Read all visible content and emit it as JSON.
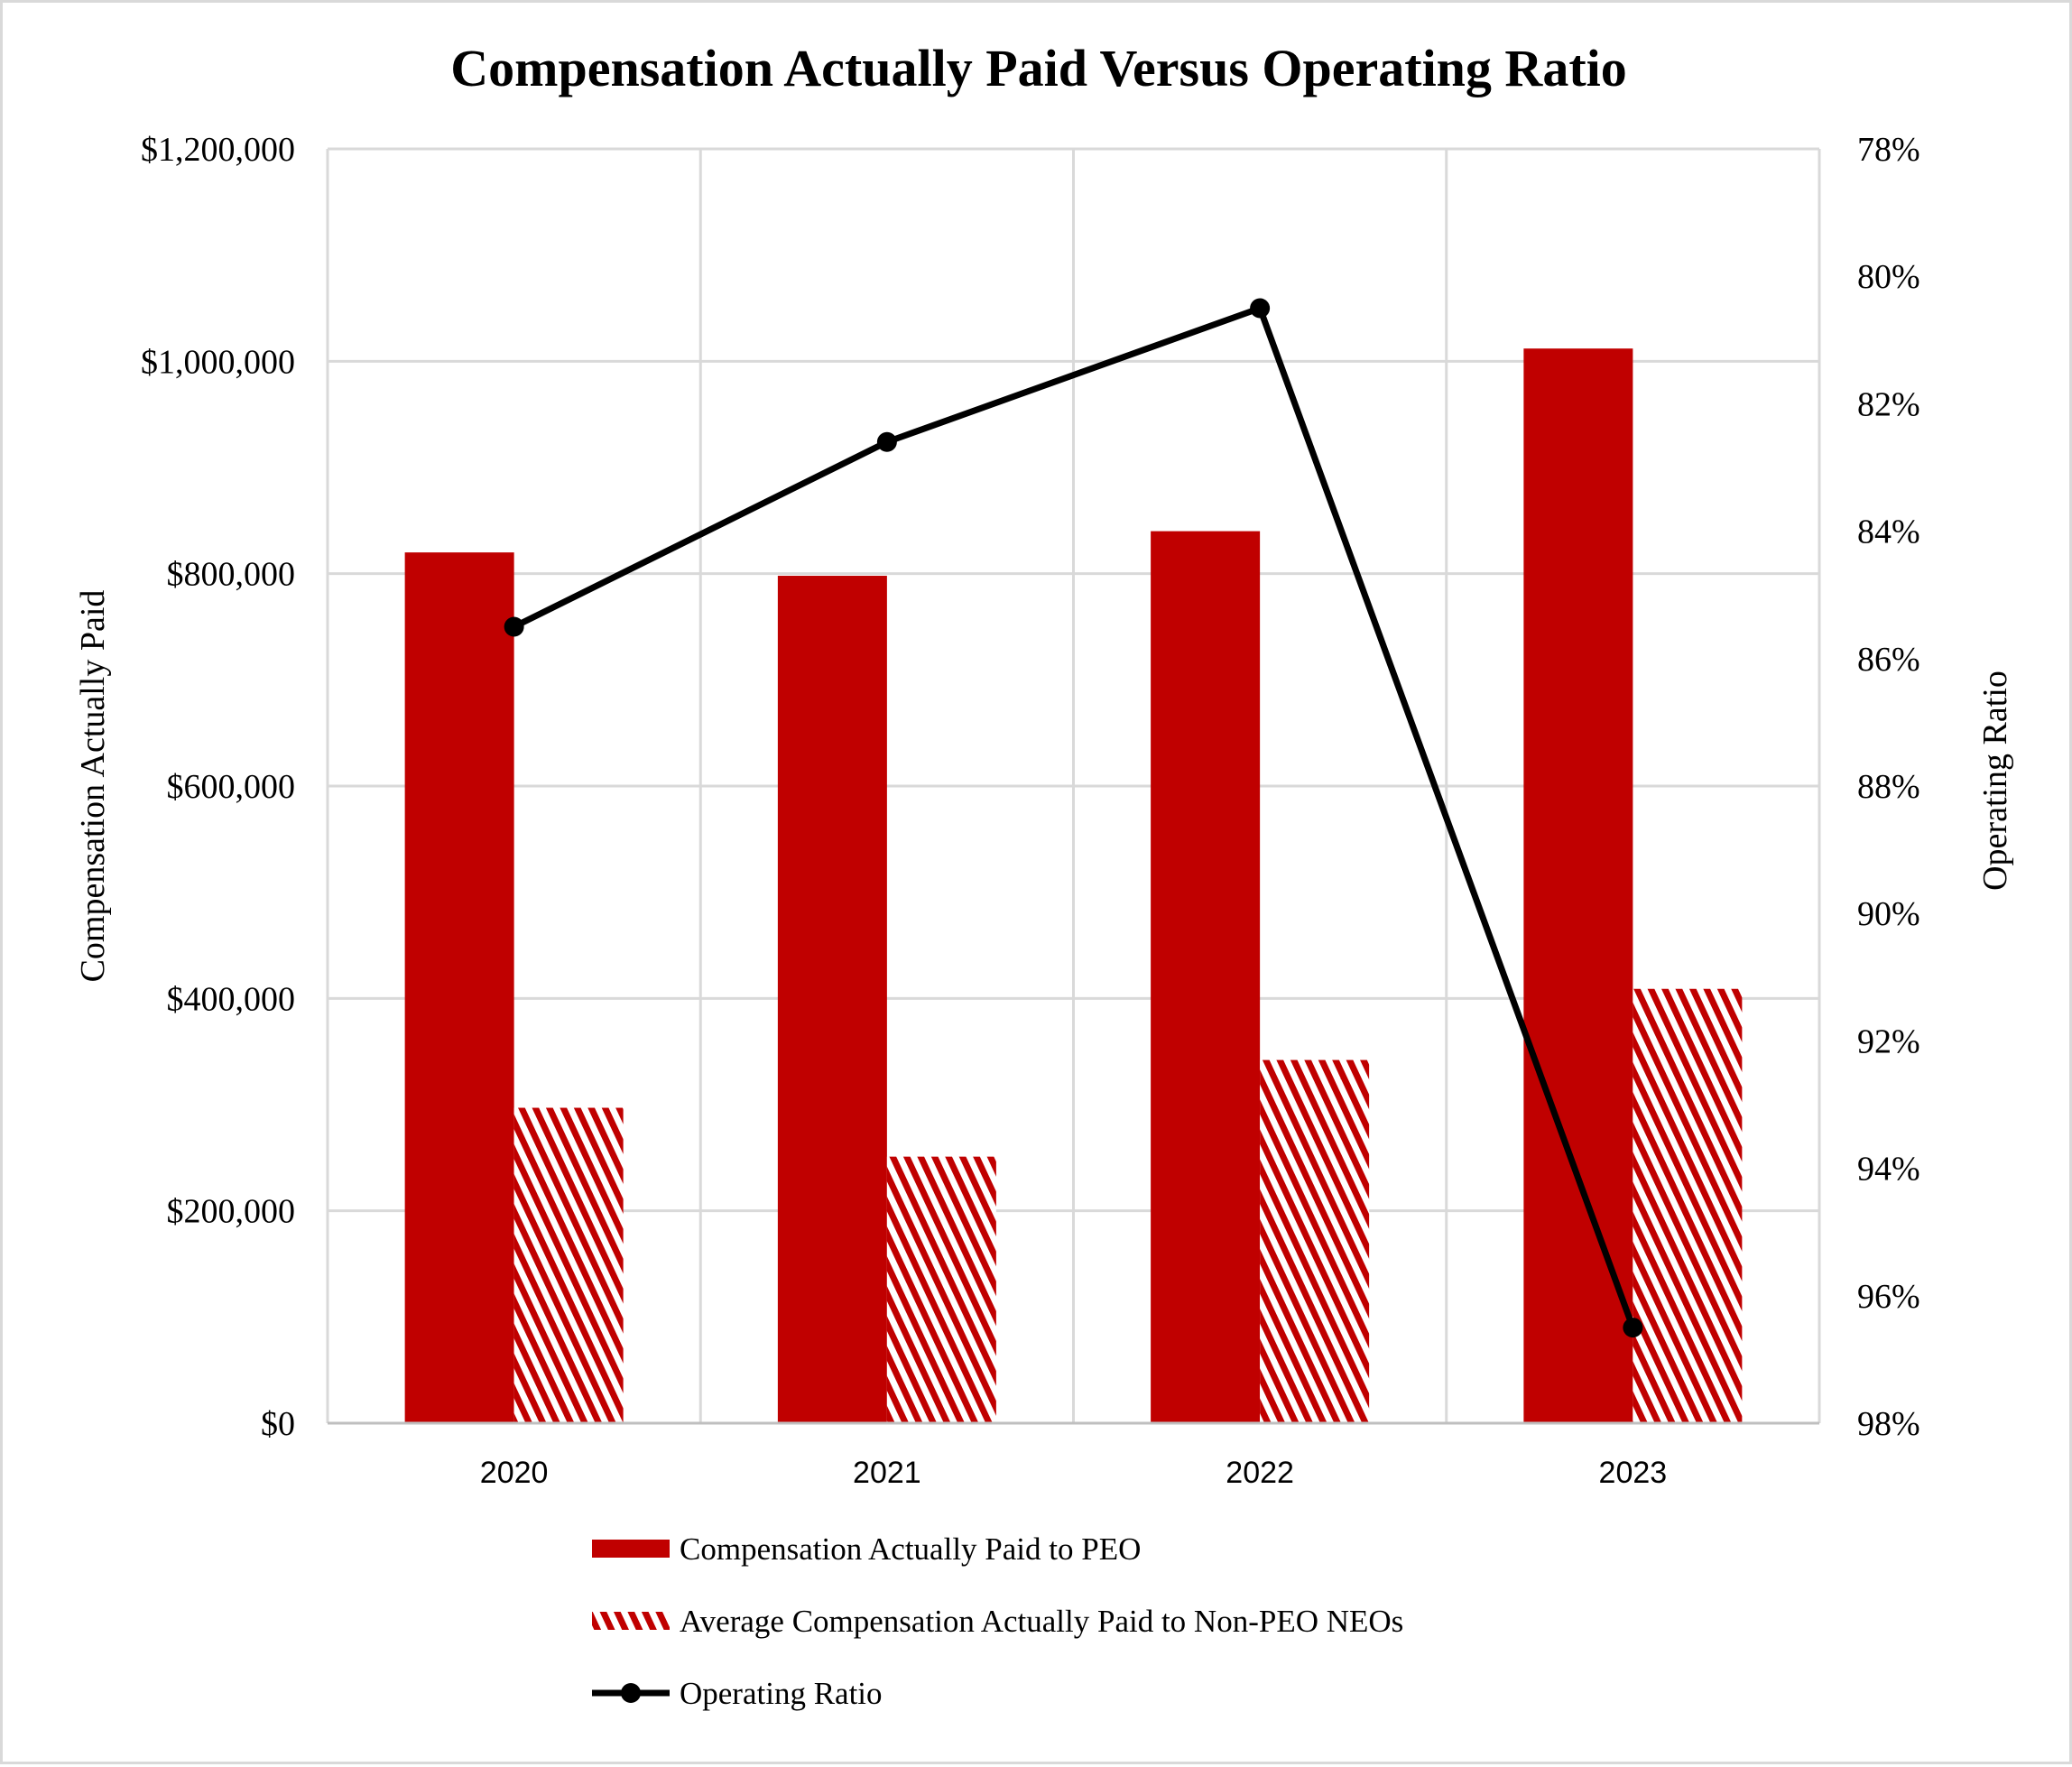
{
  "chart_data": {
    "type": "bar",
    "title": "Compensation Actually Paid Versus Operating Ratio",
    "categories": [
      "2020",
      "2021",
      "2022",
      "2023"
    ],
    "ylabel": "Compensation Actually Paid",
    "ylabel_right": "Operating Ratio",
    "ylim": [
      0,
      1200000
    ],
    "ylim_right": [
      78,
      98
    ],
    "right_axis_inverted": true,
    "y_ticks": [
      "$0",
      "$200,000",
      "$400,000",
      "$600,000",
      "$800,000",
      "$1,000,000",
      "$1,200,000"
    ],
    "y_right_ticks": [
      "78%",
      "80%",
      "82%",
      "84%",
      "86%",
      "88%",
      "90%",
      "92%",
      "94%",
      "96%",
      "98%"
    ],
    "grid": true,
    "legend_position": "bottom",
    "series": [
      {
        "name": "Compensation Actually Paid to PEO",
        "type": "bar",
        "axis": "left",
        "color": "#c00000",
        "fill": "solid",
        "values": [
          820000,
          798000,
          840000,
          1012000
        ]
      },
      {
        "name": "Average Compensation Actually Paid to Non-PEO NEOs",
        "type": "bar",
        "axis": "left",
        "color": "#c00000",
        "fill": "diagonal-hatch",
        "values": [
          297000,
          251000,
          342000,
          409000
        ]
      },
      {
        "name": "Operating Ratio",
        "type": "line",
        "axis": "right",
        "color": "#000000",
        "marker": "circle",
        "values": [
          85.5,
          82.6,
          80.5,
          96.5
        ]
      }
    ]
  }
}
